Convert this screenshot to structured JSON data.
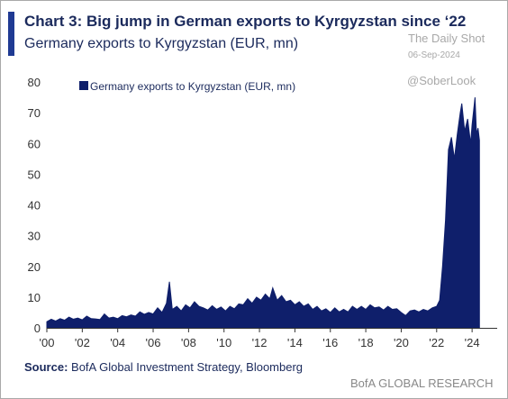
{
  "header": {
    "title": "Chart 3: Big jump in German exports to Kyrgyzstan since ‘22",
    "subtitle": "Germany exports to Kyrgyzstan (EUR, mn)"
  },
  "watermark": {
    "name": "The Daily Shot",
    "date": "06-Sep-2024",
    "handle": "@SoberLook"
  },
  "footer": {
    "source_label": "Source:",
    "source_text": "BofA Global Investment Strategy, Bloomberg",
    "brand": "BofA GLOBAL RESEARCH"
  },
  "chart_data": {
    "type": "area",
    "title": "Chart 3: Big jump in German exports to Kyrgyzstan since ‘22",
    "subtitle": "Germany exports to Kyrgyzstan (EUR, mn)",
    "xlabel": "",
    "ylabel": "",
    "xlim": [
      "2000-01",
      "2025-06"
    ],
    "ylim": [
      0,
      80
    ],
    "y_ticks": [
      0,
      10,
      20,
      30,
      40,
      50,
      60,
      70,
      80
    ],
    "x_tick_labels": [
      "'00",
      "'02",
      "'04",
      "'06",
      "'08",
      "'10",
      "'12",
      "'14",
      "'16",
      "'18",
      "'20",
      "'22",
      "'24"
    ],
    "grid": false,
    "legend_position": "top-left",
    "colors": {
      "series": "#0f1f6b",
      "axis": "#333333",
      "text": "#1b2a5c"
    },
    "series": [
      {
        "name": "Germany exports to Kyrgyzstan (EUR, mn)",
        "points": [
          [
            "2000-01",
            2.0
          ],
          [
            "2000-04",
            2.8
          ],
          [
            "2000-07",
            2.2
          ],
          [
            "2000-10",
            3.0
          ],
          [
            "2001-01",
            2.5
          ],
          [
            "2001-04",
            3.5
          ],
          [
            "2001-07",
            2.8
          ],
          [
            "2001-10",
            3.2
          ],
          [
            "2002-01",
            2.6
          ],
          [
            "2002-04",
            3.8
          ],
          [
            "2002-07",
            3.0
          ],
          [
            "2002-10",
            2.9
          ],
          [
            "2003-01",
            2.7
          ],
          [
            "2003-04",
            4.5
          ],
          [
            "2003-07",
            3.2
          ],
          [
            "2003-10",
            3.5
          ],
          [
            "2004-01",
            3.0
          ],
          [
            "2004-04",
            4.0
          ],
          [
            "2004-07",
            3.6
          ],
          [
            "2004-10",
            4.2
          ],
          [
            "2005-01",
            3.8
          ],
          [
            "2005-04",
            5.2
          ],
          [
            "2005-07",
            4.4
          ],
          [
            "2005-10",
            5.0
          ],
          [
            "2006-01",
            4.5
          ],
          [
            "2006-04",
            6.5
          ],
          [
            "2006-07",
            5.0
          ],
          [
            "2006-10",
            8.0
          ],
          [
            "2006-12",
            15.0
          ],
          [
            "2007-02",
            6.0
          ],
          [
            "2007-05",
            7.0
          ],
          [
            "2007-08",
            5.5
          ],
          [
            "2007-11",
            7.5
          ],
          [
            "2008-02",
            6.5
          ],
          [
            "2008-05",
            8.5
          ],
          [
            "2008-08",
            7.0
          ],
          [
            "2008-11",
            6.5
          ],
          [
            "2009-02",
            5.8
          ],
          [
            "2009-05",
            7.2
          ],
          [
            "2009-08",
            6.0
          ],
          [
            "2009-11",
            6.8
          ],
          [
            "2010-02",
            5.5
          ],
          [
            "2010-05",
            7.0
          ],
          [
            "2010-08",
            6.2
          ],
          [
            "2010-11",
            7.8
          ],
          [
            "2011-02",
            7.5
          ],
          [
            "2011-05",
            9.5
          ],
          [
            "2011-08",
            8.0
          ],
          [
            "2011-11",
            10.0
          ],
          [
            "2012-02",
            9.0
          ],
          [
            "2012-05",
            11.0
          ],
          [
            "2012-08",
            9.5
          ],
          [
            "2012-10",
            13.0
          ],
          [
            "2013-01",
            9.0
          ],
          [
            "2013-04",
            10.5
          ],
          [
            "2013-07",
            8.5
          ],
          [
            "2013-10",
            9.0
          ],
          [
            "2014-01",
            7.5
          ],
          [
            "2014-04",
            8.5
          ],
          [
            "2014-07",
            7.0
          ],
          [
            "2014-10",
            7.8
          ],
          [
            "2015-01",
            6.0
          ],
          [
            "2015-04",
            7.0
          ],
          [
            "2015-07",
            5.5
          ],
          [
            "2015-10",
            6.2
          ],
          [
            "2016-01",
            5.0
          ],
          [
            "2016-04",
            6.5
          ],
          [
            "2016-07",
            5.2
          ],
          [
            "2016-10",
            6.0
          ],
          [
            "2017-01",
            5.2
          ],
          [
            "2017-04",
            7.0
          ],
          [
            "2017-07",
            6.0
          ],
          [
            "2017-10",
            7.0
          ],
          [
            "2018-01",
            6.0
          ],
          [
            "2018-04",
            7.5
          ],
          [
            "2018-07",
            6.5
          ],
          [
            "2018-10",
            6.8
          ],
          [
            "2019-01",
            5.8
          ],
          [
            "2019-04",
            7.0
          ],
          [
            "2019-07",
            6.0
          ],
          [
            "2019-10",
            6.2
          ],
          [
            "2020-01",
            5.0
          ],
          [
            "2020-04",
            4.0
          ],
          [
            "2020-07",
            5.5
          ],
          [
            "2020-10",
            5.8
          ],
          [
            "2021-01",
            5.2
          ],
          [
            "2021-04",
            6.0
          ],
          [
            "2021-07",
            5.5
          ],
          [
            "2021-10",
            6.5
          ],
          [
            "2022-01",
            7.0
          ],
          [
            "2022-03",
            9.0
          ],
          [
            "2022-05",
            20.0
          ],
          [
            "2022-07",
            35.0
          ],
          [
            "2022-09",
            58.0
          ],
          [
            "2022-11",
            62.0
          ],
          [
            "2023-01",
            55.0
          ],
          [
            "2023-03",
            63.0
          ],
          [
            "2023-05",
            70.0
          ],
          [
            "2023-06",
            73.0
          ],
          [
            "2023-08",
            64.0
          ],
          [
            "2023-10",
            68.0
          ],
          [
            "2023-12",
            60.0
          ],
          [
            "2024-01",
            66.0
          ],
          [
            "2024-03",
            75.0
          ],
          [
            "2024-04",
            63.0
          ],
          [
            "2024-05",
            65.0
          ],
          [
            "2024-06",
            61.0
          ]
        ]
      }
    ]
  }
}
